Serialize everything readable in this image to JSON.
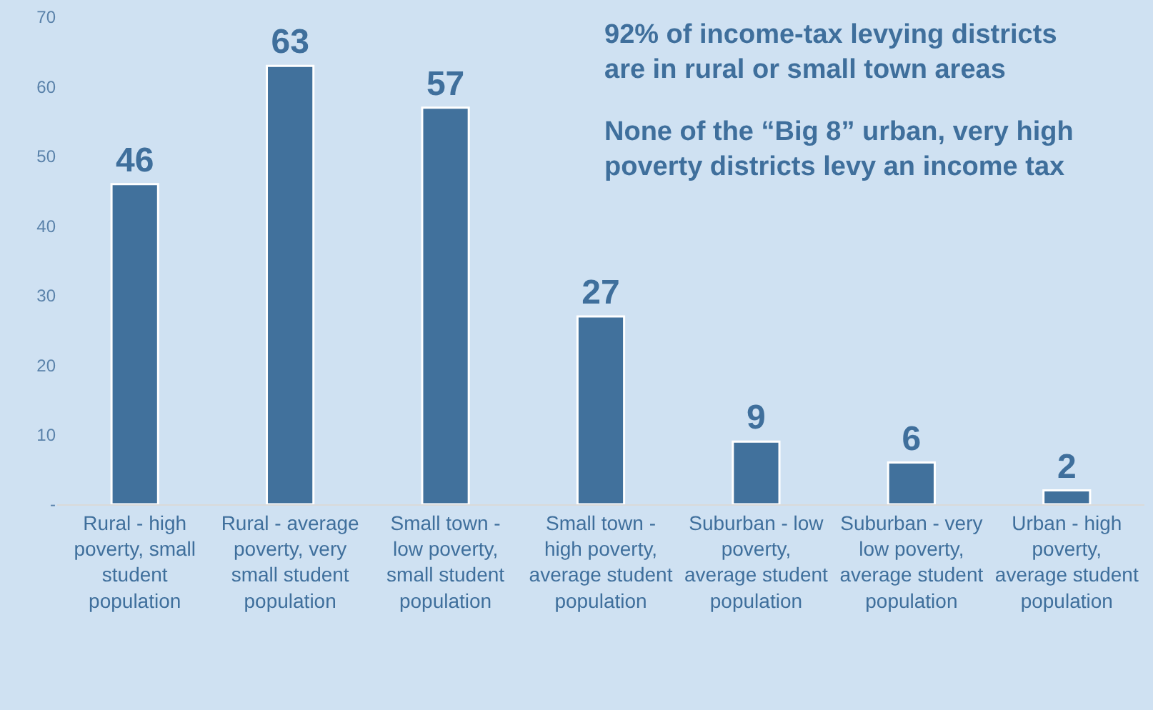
{
  "chart_data": {
    "type": "bar",
    "categories": [
      "Rural - high poverty, small student population",
      "Rural - average poverty, very small student population",
      "Small town - low poverty, small student population",
      "Small town - high poverty, average student population",
      "Suburban - low poverty, average student population",
      "Suburban - very low poverty, average student population",
      "Urban - high poverty, average student population"
    ],
    "values": [
      46,
      63,
      57,
      27,
      9,
      6,
      2
    ],
    "color": "#41719c",
    "ylim": [
      0,
      70
    ],
    "yticks": [
      {
        "value": 0,
        "label": "-"
      },
      10,
      20,
      30,
      40,
      50,
      60,
      70
    ],
    "grid": false,
    "data_labels": true,
    "annotations": [
      "92% of income-tax levying districts are in rural or small town areas",
      "None of the “Big 8” urban, very high poverty districts levy an income tax"
    ]
  }
}
